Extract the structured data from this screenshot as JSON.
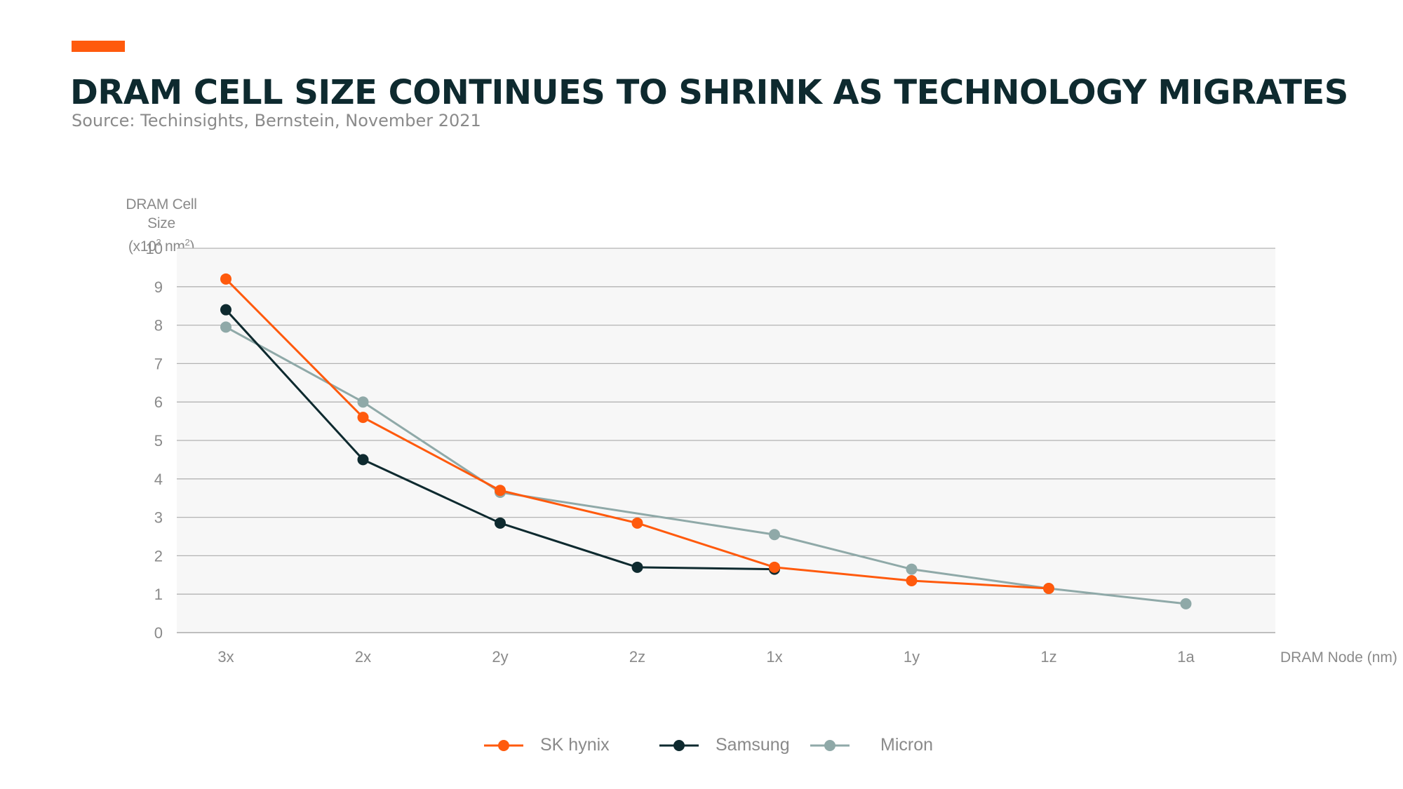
{
  "header": {
    "title": "DRAM CELL SIZE CONTINUES TO SHRINK AS TECHNOLOGY MIGRATES",
    "source": "Source: Techinsights, Bernstein, November 2021",
    "accent_color": "#ff5a0d",
    "title_color": "#0e2a2f"
  },
  "chart_data": {
    "type": "line",
    "ylabel_line1": "DRAM Cell Size",
    "ylabel_prefix": "(x10",
    "ylabel_exp1": "3",
    "ylabel_unit": " nm",
    "ylabel_exp2": "2",
    "ylabel_suffix": ")",
    "xlabel": "DRAM Node (nm)",
    "categories": [
      "3x",
      "2x",
      "2y",
      "2z",
      "1x",
      "1y",
      "1z",
      "1a"
    ],
    "ylim": [
      0,
      10
    ],
    "yticks": [
      0,
      1,
      2,
      3,
      4,
      5,
      6,
      7,
      8,
      9,
      10
    ],
    "grid": true,
    "plot_background": "#f7f7f7",
    "legend_position": "bottom-center",
    "series": [
      {
        "name": "SK hynix",
        "color": "#ff5a0d",
        "values": [
          9.2,
          5.6,
          3.7,
          2.85,
          1.7,
          1.35,
          1.15,
          null
        ]
      },
      {
        "name": "Samsung",
        "color": "#0e2a2f",
        "values": [
          8.4,
          4.5,
          2.85,
          1.7,
          1.65,
          null,
          null,
          null
        ]
      },
      {
        "name": "Micron",
        "color": "#8fa9a8",
        "values": [
          7.95,
          6.0,
          3.65,
          null,
          2.55,
          1.65,
          1.15,
          0.75
        ]
      }
    ]
  }
}
